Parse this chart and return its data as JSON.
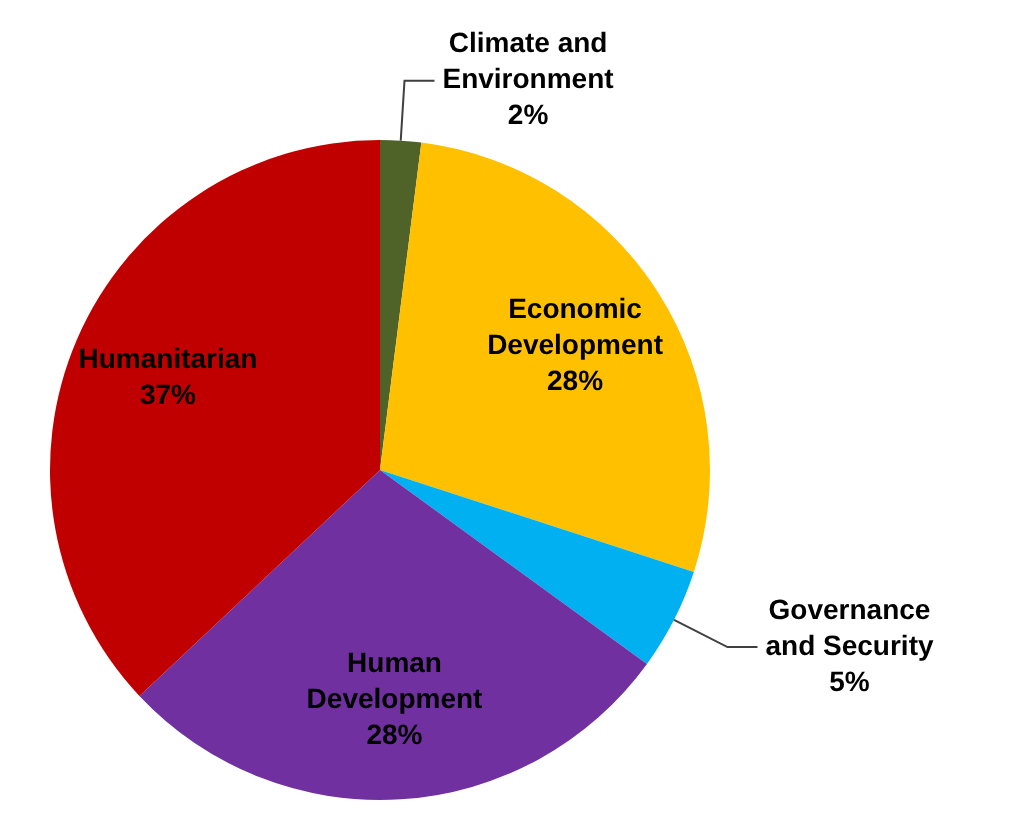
{
  "chart_data": {
    "type": "pie",
    "categories": [
      "Climate and Environment",
      "Economic Development",
      "Governance and Security",
      "Human Development",
      "Humanitarian"
    ],
    "values": [
      2,
      28,
      5,
      28,
      37
    ],
    "value_labels": [
      "2%",
      "28%",
      "5%",
      "28%",
      "37%"
    ],
    "colors": [
      "#4f6228",
      "#ffc000",
      "#00b0f0",
      "#7030a0",
      "#c00000"
    ],
    "legend": false
  }
}
